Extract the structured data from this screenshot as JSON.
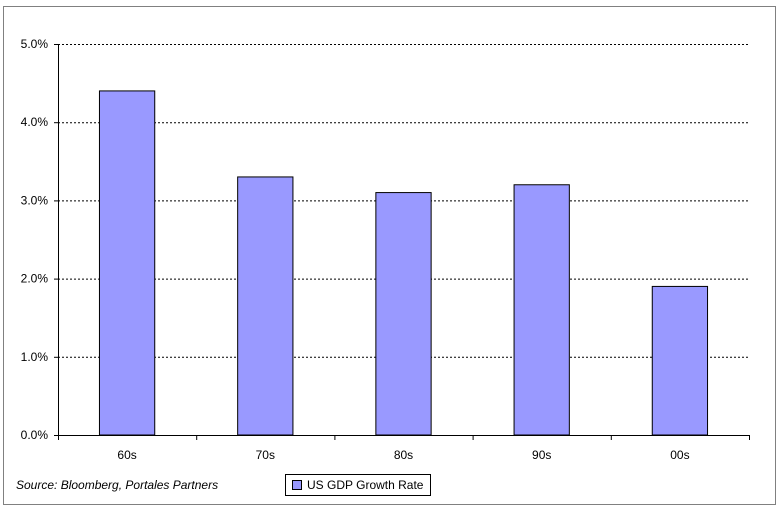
{
  "chart_data": {
    "type": "bar",
    "categories": [
      "60s",
      "70s",
      "80s",
      "90s",
      "00s"
    ],
    "series": [
      {
        "name": "US GDP Growth Rate",
        "values": [
          4.4,
          3.3,
          3.1,
          3.2,
          1.9
        ]
      }
    ],
    "ylim": [
      0,
      5
    ],
    "y_ticks": [
      "0.0%",
      "1.0%",
      "2.0%",
      "3.0%",
      "4.0%",
      "5.0%"
    ],
    "y_tick_values": [
      0,
      1,
      2,
      3,
      4,
      5
    ],
    "grid": "horizontal-dotted",
    "bar_color": "#9999ff",
    "legend_position": "bottom"
  },
  "source_note": "Source: Bloomberg, Portales Partners"
}
